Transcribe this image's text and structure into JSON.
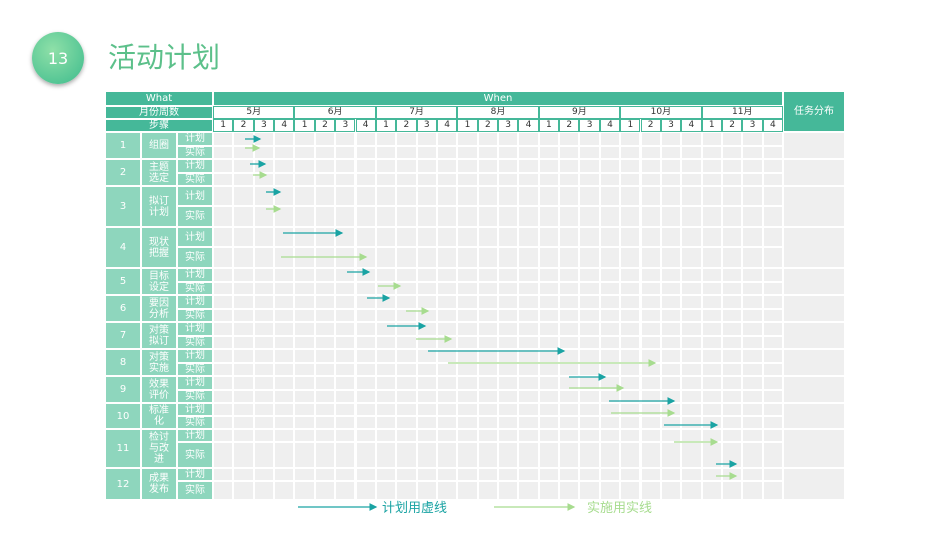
{
  "header": {
    "page_number": "13",
    "title": "活动计划"
  },
  "table": {
    "what": "What",
    "when": "When",
    "task": "任务分布",
    "month_label": "月份周数",
    "step_label": "步骤",
    "months": [
      "5月",
      "6月",
      "7月",
      "8月",
      "9月",
      "10月",
      "11月"
    ],
    "weeks": [
      "1",
      "2",
      "3",
      "4"
    ],
    "steps": [
      {
        "number": "1",
        "name": "组圈",
        "plan": "计划",
        "actual": "实际"
      },
      {
        "number": "2",
        "name": "主题选定",
        "plan": "计划",
        "actual": "实际"
      },
      {
        "number": "3",
        "name": "拟订计划",
        "plan": "计划",
        "actual": "实际"
      },
      {
        "number": "4",
        "name": "现状把握",
        "plan": "计划",
        "actual": "实际"
      },
      {
        "number": "5",
        "name": "目标设定",
        "plan": "计划",
        "actual": "实际"
      },
      {
        "number": "6",
        "name": "要因分析",
        "plan": "计划",
        "actual": "实际"
      },
      {
        "number": "7",
        "name": "对策拟订",
        "plan": "计划",
        "actual": "实际"
      },
      {
        "number": "8",
        "name": "对策实施",
        "plan": "计划",
        "actual": "实际"
      },
      {
        "number": "9",
        "name": "效果评价",
        "plan": "计划",
        "actual": "实际"
      },
      {
        "number": "10",
        "name": "标准化",
        "plan": "计划",
        "actual": "实际"
      },
      {
        "number": "11",
        "name": "检讨与改进",
        "plan": "计划",
        "actual": "实际"
      },
      {
        "number": "12",
        "name": "成果发布",
        "plan": "计划",
        "actual": "实际"
      }
    ]
  },
  "legend": {
    "plan": "计划用虚线",
    "actual": "实施用实线"
  }
}
